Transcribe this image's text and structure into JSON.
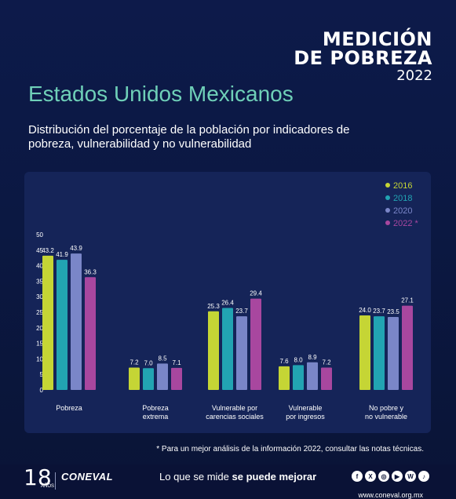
{
  "brand": {
    "line1": "MEDICIÓN",
    "line2": "DE POBREZA",
    "year": "2022"
  },
  "title": "Estados Unidos Mexicanos",
  "subtitle": "Distribución del porcentaje de la población por indicadores de pobreza, vulnerabilidad y no vulnerabilidad",
  "chart_data": {
    "type": "bar",
    "categories": [
      "Pobreza",
      "Pobreza\nextrema",
      "Vulnerable por\ncarencias sociales",
      "Vulnerable\npor ingresos",
      "No pobre y\nno vulnerable"
    ],
    "series": [
      {
        "name": "2016",
        "color": "#c5d535",
        "values": [
          43.2,
          7.2,
          25.3,
          7.6,
          24.0
        ]
      },
      {
        "name": "2018",
        "color": "#22a4b2",
        "values": [
          41.9,
          7.0,
          26.4,
          8.0,
          23.7
        ]
      },
      {
        "name": "2020",
        "color": "#7a86c8",
        "values": [
          43.9,
          8.5,
          23.7,
          8.9,
          23.5
        ]
      },
      {
        "name": "2022 *",
        "color": "#a8479f",
        "values": [
          36.3,
          7.1,
          29.4,
          7.2,
          27.1
        ]
      }
    ],
    "yticks": [
      0,
      5,
      10,
      15,
      20,
      25,
      30,
      35,
      40,
      45,
      50
    ],
    "ylim": [
      0,
      50
    ],
    "legend_position": "top-right",
    "grid": false
  },
  "footnote": "* Para un mejor análisis de la información 2022, consultar las notas técnicas.",
  "footer": {
    "logo_number": "18",
    "logo_anos": "AÑOS",
    "org": "CONEVAL",
    "slogan_plain": "Lo que se mide ",
    "slogan_bold": "se puede mejorar",
    "social_icons": [
      "facebook-icon",
      "x-icon",
      "instagram-icon",
      "youtube-icon",
      "web-icon",
      "podcast-icon"
    ],
    "url": "www.coneval.org.mx"
  }
}
